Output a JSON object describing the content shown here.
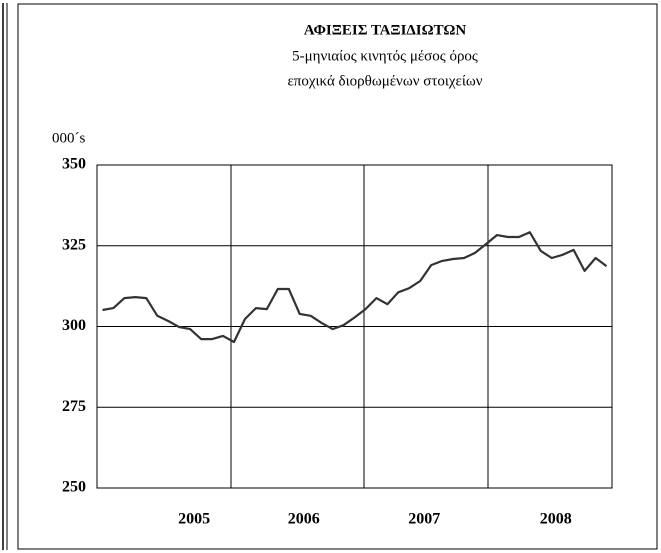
{
  "chart_data": {
    "type": "line",
    "title": "ΑΦΙΞΕΙΣ ΤΑΞΙΔΙΩΤΩΝ",
    "subtitle": [
      "5-μηνιαίος κινητός μέσος όρος",
      "εποχικά διορθωμένων στοιχείων"
    ],
    "y_label": "000´s",
    "categories": [
      null,
      null,
      null,
      null,
      null,
      null,
      null,
      null,
      "2005",
      null,
      null,
      null,
      null,
      null,
      null,
      null,
      null,
      null,
      "2006",
      null,
      null,
      null,
      null,
      null,
      null,
      null,
      null,
      null,
      null,
      "2007",
      null,
      null,
      null,
      null,
      null,
      null,
      null,
      null,
      null,
      null,
      null,
      "2008",
      null,
      null,
      null,
      null,
      null
    ],
    "series": [
      {
        "name": "Αφίξεις",
        "color": "#333333",
        "values": [
          305.1,
          305.7,
          308.8,
          309.1,
          308.8,
          303.3,
          301.7,
          299.8,
          299.2,
          296.1,
          296.1,
          297.1,
          295.2,
          302.3,
          305.7,
          305.4,
          311.6,
          311.6,
          303.9,
          303.3,
          301.1,
          299.2,
          300.4,
          302.8,
          305.4,
          308.8,
          306.9,
          310.6,
          311.9,
          314.1,
          319.0,
          320.3,
          320.9,
          321.2,
          322.8,
          325.5,
          328.3,
          327.7,
          327.7,
          329.2,
          323.4,
          321.2,
          322.2,
          323.7,
          317.2,
          321.2,
          318.7
        ]
      }
    ],
    "ylim": [
      250,
      350
    ],
    "yticks": [
      250,
      275,
      300,
      325,
      350
    ],
    "grid": true
  }
}
